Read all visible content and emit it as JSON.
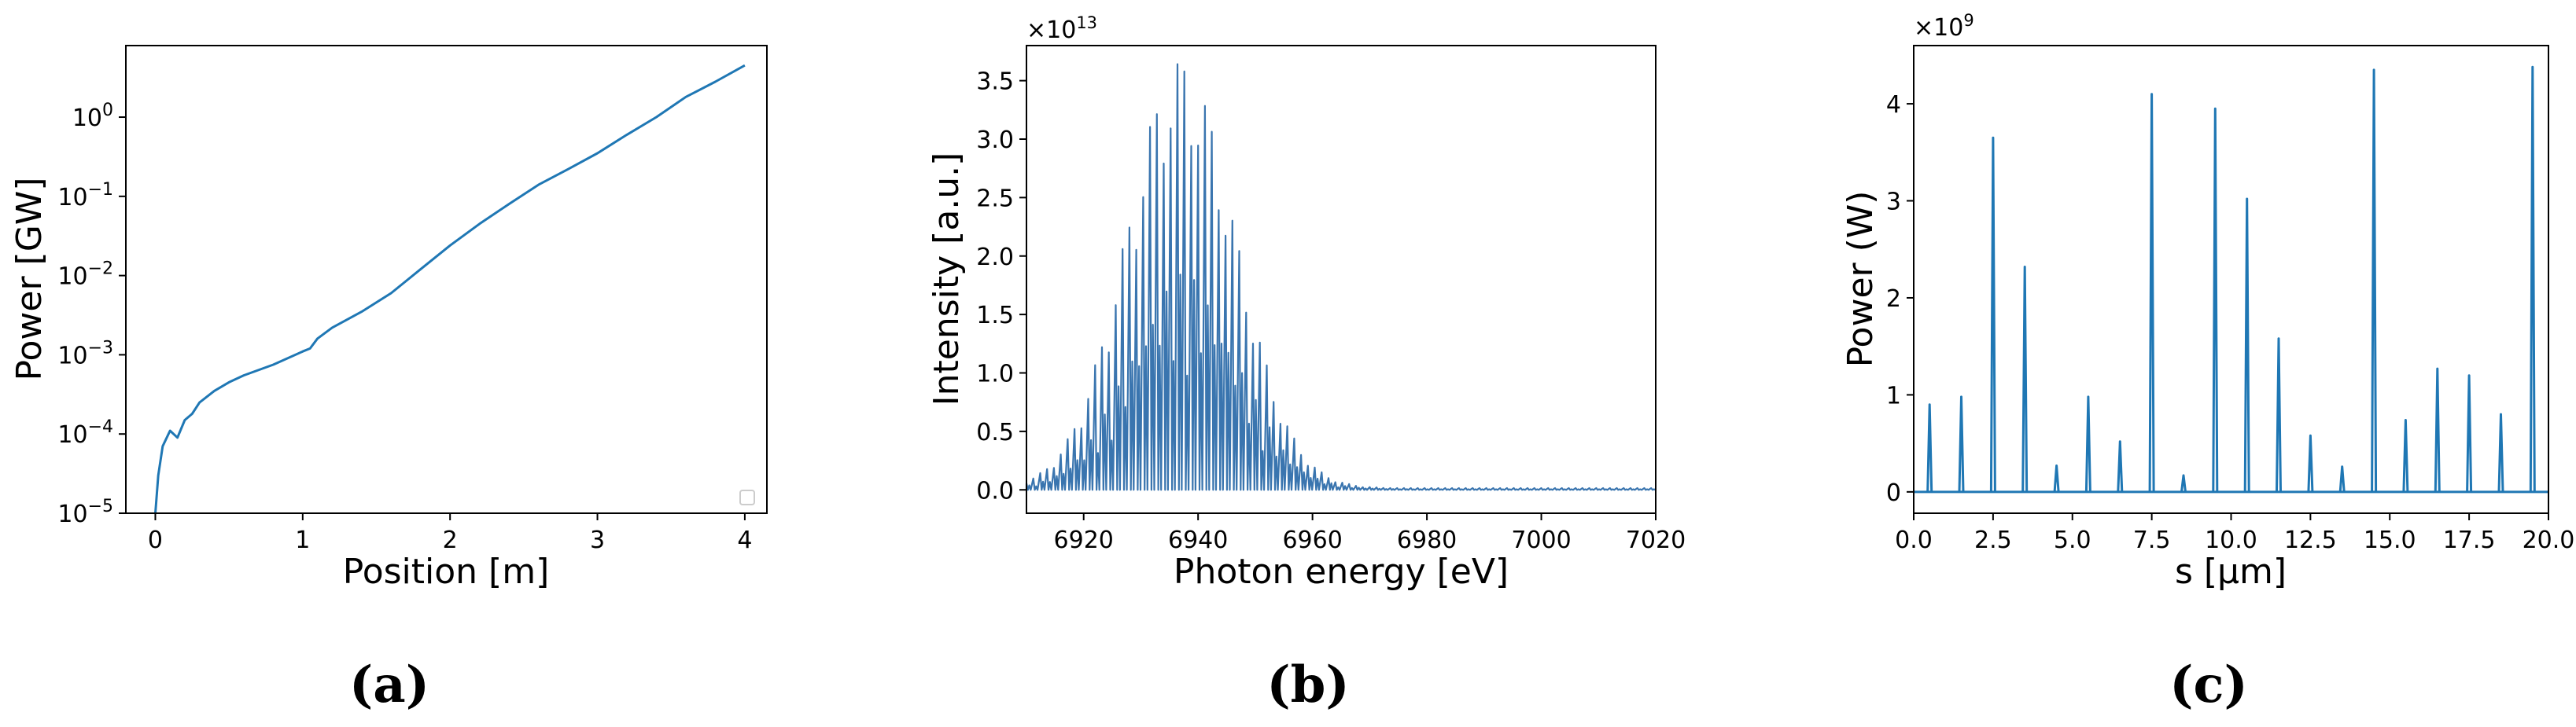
{
  "chart_data": [
    {
      "id": "a",
      "type": "line",
      "panel_label": "(a)",
      "xlabel": "Position [m]",
      "ylabel": "Power [GW]",
      "yscale": "log",
      "xlim": [
        -0.2,
        4.15
      ],
      "ylim": [
        1e-05,
        8
      ],
      "xticks": [
        {
          "v": 0,
          "label": "0"
        },
        {
          "v": 1,
          "label": "1"
        },
        {
          "v": 2,
          "label": "2"
        },
        {
          "v": 3,
          "label": "3"
        },
        {
          "v": 4,
          "label": "4"
        }
      ],
      "yticks": [
        {
          "v": 1e-05,
          "base": "10",
          "exp": "−5"
        },
        {
          "v": 0.0001,
          "base": "10",
          "exp": "−4"
        },
        {
          "v": 0.001,
          "base": "10",
          "exp": "−3"
        },
        {
          "v": 0.01,
          "base": "10",
          "exp": "−2"
        },
        {
          "v": 0.1,
          "base": "10",
          "exp": "−1"
        },
        {
          "v": 1,
          "base": "10",
          "exp": "0"
        }
      ],
      "color": "#1f77b4",
      "legend": "lower right (empty)",
      "series": [
        {
          "name": "power",
          "x": [
            0.0,
            0.02,
            0.05,
            0.1,
            0.15,
            0.2,
            0.25,
            0.3,
            0.4,
            0.5,
            0.6,
            0.8,
            1.0,
            1.05,
            1.1,
            1.2,
            1.4,
            1.6,
            1.8,
            2.0,
            2.2,
            2.4,
            2.6,
            2.8,
            3.0,
            3.2,
            3.4,
            3.6,
            3.8,
            4.0
          ],
          "y": [
            1e-05,
            3e-05,
            7e-05,
            0.00011,
            9e-05,
            0.00015,
            0.00018,
            0.00025,
            0.00035,
            0.00045,
            0.00055,
            0.00075,
            0.0011,
            0.0012,
            0.0016,
            0.0022,
            0.0035,
            0.006,
            0.012,
            0.024,
            0.045,
            0.08,
            0.14,
            0.22,
            0.35,
            0.6,
            1.0,
            1.8,
            2.8,
            4.5
          ]
        }
      ]
    },
    {
      "id": "b",
      "type": "line",
      "panel_label": "(b)",
      "xlabel": "Photon energy [eV]",
      "ylabel": "Intensity [a.u.]",
      "sci_offset": {
        "base": "×10",
        "exp": "13"
      },
      "xlim": [
        6910,
        7020
      ],
      "ylim": [
        -0.2,
        3.8
      ],
      "xticks": [
        {
          "v": 6920,
          "label": "6920"
        },
        {
          "v": 6940,
          "label": "6940"
        },
        {
          "v": 6960,
          "label": "6960"
        },
        {
          "v": 6980,
          "label": "6980"
        },
        {
          "v": 7000,
          "label": "7000"
        },
        {
          "v": 7020,
          "label": "7020"
        }
      ],
      "yticks": [
        {
          "v": 0,
          "label": "0.0"
        },
        {
          "v": 0.5,
          "label": "0.5"
        },
        {
          "v": 1.0,
          "label": "1.0"
        },
        {
          "v": 1.5,
          "label": "1.5"
        },
        {
          "v": 2.0,
          "label": "2.0"
        },
        {
          "v": 2.5,
          "label": "2.5"
        },
        {
          "v": 3.0,
          "label": "3.0"
        },
        {
          "v": 3.5,
          "label": "3.5"
        }
      ],
      "color": "#3a75af",
      "spectrum": {
        "center": 6937,
        "sigma": 9.5,
        "peak": 3.6,
        "spike_spacing": 1.2,
        "x_start": 6910,
        "x_end": 7020
      }
    },
    {
      "id": "c",
      "type": "line",
      "panel_label": "(c)",
      "xlabel": "s [μm]",
      "ylabel": "Power (W)",
      "sci_offset": {
        "base": "×10",
        "exp": "9"
      },
      "xlim": [
        0.0,
        20.0
      ],
      "ylim": [
        -0.22,
        4.6
      ],
      "xticks": [
        {
          "v": 0,
          "label": "0.0"
        },
        {
          "v": 2.5,
          "label": "2.5"
        },
        {
          "v": 5,
          "label": "5.0"
        },
        {
          "v": 7.5,
          "label": "7.5"
        },
        {
          "v": 10,
          "label": "10.0"
        },
        {
          "v": 12.5,
          "label": "12.5"
        },
        {
          "v": 15,
          "label": "15.0"
        },
        {
          "v": 17.5,
          "label": "17.5"
        },
        {
          "v": 20,
          "label": "20.0"
        }
      ],
      "yticks": [
        {
          "v": 0,
          "label": "0"
        },
        {
          "v": 1,
          "label": "1"
        },
        {
          "v": 2,
          "label": "2"
        },
        {
          "v": 3,
          "label": "3"
        },
        {
          "v": 4,
          "label": "4"
        }
      ],
      "color": "#1f77b4",
      "series": [
        {
          "name": "pulse train",
          "spike_positions": [
            0.5,
            1.5,
            2.5,
            3.5,
            4.5,
            5.5,
            6.5,
            7.5,
            8.5,
            9.5,
            10.5,
            11.5,
            12.5,
            13.5,
            14.5,
            15.5,
            16.5,
            17.5,
            18.5,
            19.5
          ],
          "spike_values": [
            0.9,
            0.98,
            3.65,
            2.32,
            0.27,
            0.98,
            0.52,
            4.1,
            0.17,
            3.95,
            3.02,
            1.58,
            0.58,
            0.26,
            4.35,
            0.74,
            1.27,
            1.2,
            0.8,
            4.38
          ]
        }
      ]
    }
  ]
}
